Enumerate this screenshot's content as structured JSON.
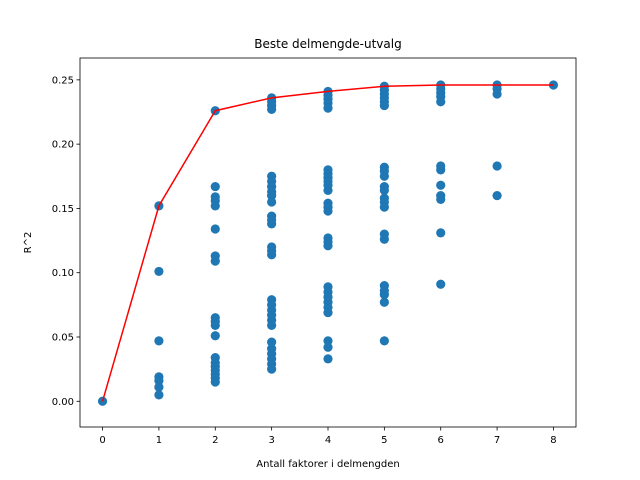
{
  "chart_data": {
    "type": "scatter",
    "title": "Beste delmengde-utvalg",
    "xlabel": "Antall faktorer i delmengden",
    "ylabel": "R^2",
    "xlim": [
      -0.4,
      8.4
    ],
    "ylim": [
      -0.02,
      0.267
    ],
    "xticks": [
      0,
      1,
      2,
      3,
      4,
      5,
      6,
      7,
      8
    ],
    "yticks": [
      0.0,
      0.05,
      0.1,
      0.15,
      0.2,
      0.25
    ],
    "ytick_labels": [
      "0.00",
      "0.05",
      "0.10",
      "0.15",
      "0.20",
      "0.25"
    ],
    "grid": false,
    "colors": {
      "points": "#1f77b4",
      "best_line": "#ff0000"
    },
    "points": [
      {
        "k": 0,
        "values": [
          0.0
        ]
      },
      {
        "k": 1,
        "values": [
          0.152,
          0.101,
          0.047,
          0.019,
          0.016,
          0.011,
          0.005
        ]
      },
      {
        "k": 2,
        "values": [
          0.226,
          0.167,
          0.159,
          0.156,
          0.152,
          0.134,
          0.113,
          0.109,
          0.065,
          0.062,
          0.059,
          0.051,
          0.034,
          0.03,
          0.027,
          0.024,
          0.021,
          0.018,
          0.015
        ]
      },
      {
        "k": 3,
        "values": [
          0.236,
          0.233,
          0.23,
          0.227,
          0.175,
          0.171,
          0.167,
          0.163,
          0.16,
          0.155,
          0.144,
          0.141,
          0.138,
          0.12,
          0.117,
          0.114,
          0.079,
          0.075,
          0.071,
          0.067,
          0.063,
          0.059,
          0.046,
          0.041,
          0.037,
          0.033,
          0.029,
          0.025
        ]
      },
      {
        "k": 4,
        "values": [
          0.241,
          0.238,
          0.235,
          0.232,
          0.228,
          0.18,
          0.177,
          0.174,
          0.171,
          0.168,
          0.164,
          0.154,
          0.151,
          0.148,
          0.127,
          0.124,
          0.121,
          0.089,
          0.085,
          0.081,
          0.077,
          0.073,
          0.069,
          0.047,
          0.042,
          0.033
        ]
      },
      {
        "k": 5,
        "values": [
          0.245,
          0.242,
          0.239,
          0.236,
          0.233,
          0.23,
          0.182,
          0.179,
          0.175,
          0.167,
          0.164,
          0.158,
          0.155,
          0.151,
          0.13,
          0.126,
          0.09,
          0.086,
          0.083,
          0.077,
          0.047
        ]
      },
      {
        "k": 6,
        "values": [
          0.246,
          0.243,
          0.24,
          0.237,
          0.233,
          0.183,
          0.18,
          0.168,
          0.16,
          0.157,
          0.131,
          0.091
        ]
      },
      {
        "k": 7,
        "values": [
          0.246,
          0.243,
          0.239,
          0.183,
          0.16
        ]
      },
      {
        "k": 8,
        "values": [
          0.246
        ]
      }
    ],
    "best_line": {
      "x": [
        0,
        1,
        2,
        3,
        4,
        5,
        6,
        7,
        8
      ],
      "y": [
        0.0,
        0.152,
        0.226,
        0.236,
        0.241,
        0.245,
        0.246,
        0.246,
        0.246
      ]
    }
  }
}
